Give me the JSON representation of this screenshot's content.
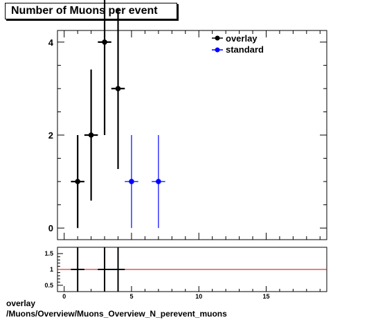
{
  "title": "Number of Muons per event",
  "footer": {
    "line1": "overlay",
    "line2": "/Muons/Overview/Muons_Overview_N_perevent_muons"
  },
  "colors": {
    "overlay": "#000000",
    "standard": "#0000ff",
    "ratio_line": "#cc0000"
  },
  "chart_data": [
    {
      "type": "scatter",
      "title": "Number of Muons per event",
      "xlim": [
        -0.5,
        19.5
      ],
      "ylim": [
        -0.25,
        4.25
      ],
      "y_ticks": [
        0,
        2,
        4
      ],
      "legend": {
        "placement": "top-right",
        "entries": [
          "overlay",
          "standard"
        ]
      },
      "series": [
        {
          "name": "overlay",
          "points": [
            {
              "x": 1,
              "y": 1,
              "yerr_low": 1.0,
              "yerr_high": 1.0
            },
            {
              "x": 2,
              "y": 2,
              "yerr_low": 1.41,
              "yerr_high": 1.41
            },
            {
              "x": 3,
              "y": 4,
              "yerr_low": 2.0,
              "yerr_high": 2.0
            },
            {
              "x": 4,
              "y": 3,
              "yerr_low": 1.73,
              "yerr_high": 1.73
            }
          ],
          "xerr": 0.5
        },
        {
          "name": "standard",
          "points": [
            {
              "x": 5,
              "y": 1,
              "yerr_low": 1.0,
              "yerr_high": 1.0
            },
            {
              "x": 7,
              "y": 1,
              "yerr_low": 1.0,
              "yerr_high": 1.0
            }
          ],
          "xerr": 0.5
        }
      ]
    },
    {
      "type": "scatter",
      "xlim": [
        -0.5,
        19.5
      ],
      "ylim": [
        0.3,
        1.7
      ],
      "x_ticks": [
        0,
        5,
        10,
        15
      ],
      "y_ticks": [
        0.5,
        1,
        1.5
      ],
      "reference_line": 1,
      "ratio_points": [
        {
          "x": 1,
          "y": 1
        },
        {
          "x": 3,
          "y": 1
        },
        {
          "x": 4,
          "y": 1
        }
      ]
    }
  ]
}
